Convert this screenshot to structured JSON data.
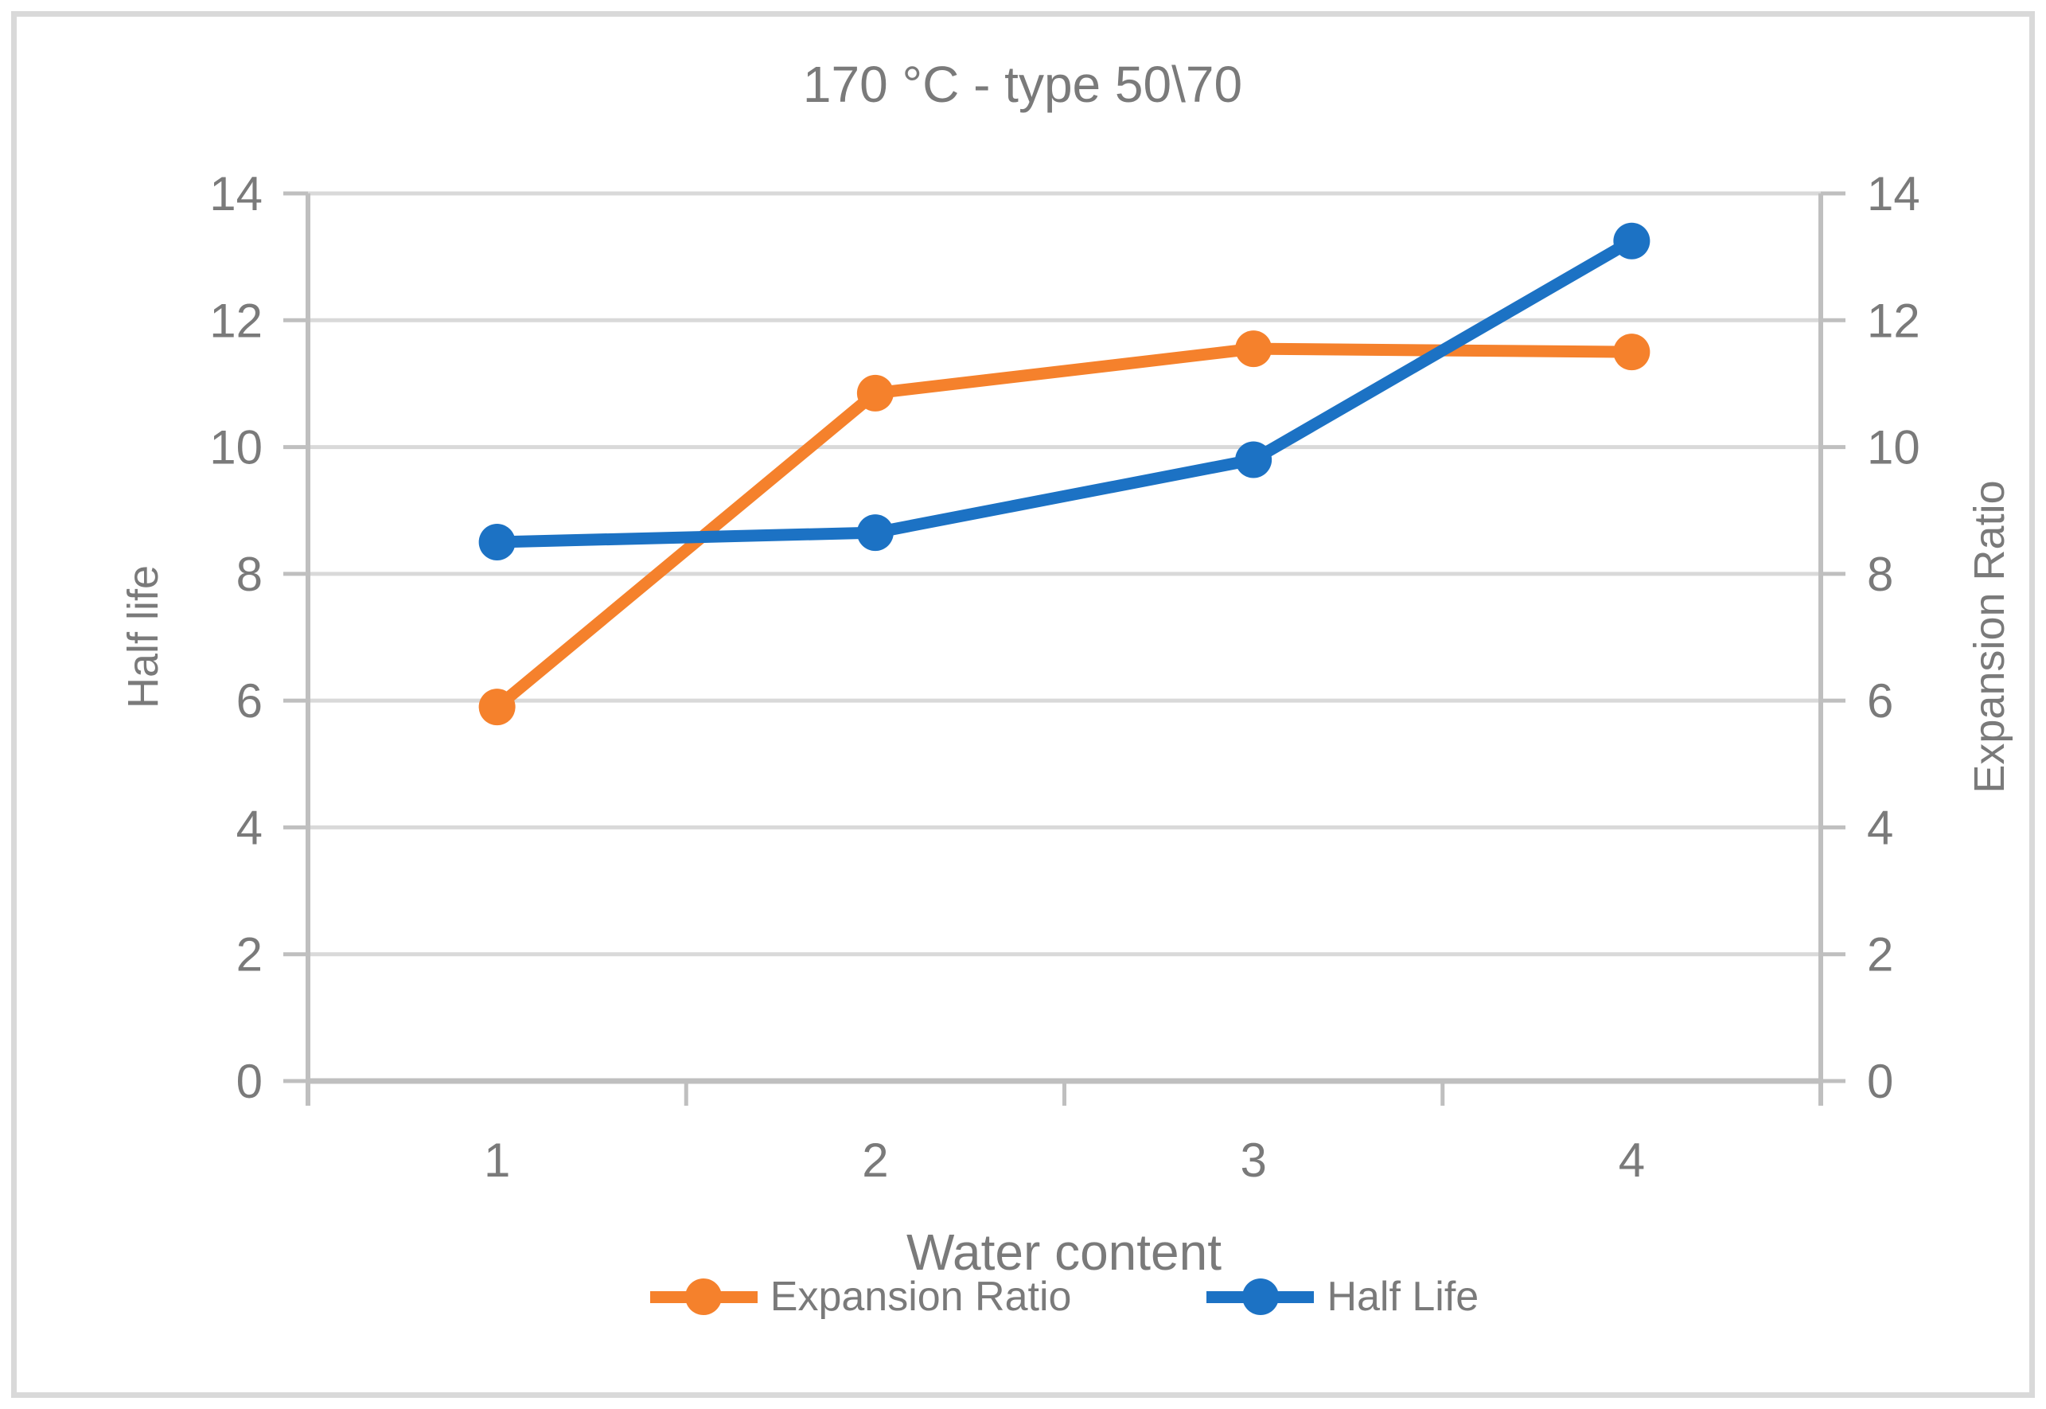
{
  "chart_data": {
    "type": "line",
    "title": "170 °C - type 50\\70",
    "xlabel": "Water content",
    "ylabel_left": "Half life",
    "ylabel_right": "Expansion Ratio",
    "x": [
      1,
      2,
      3,
      4
    ],
    "x_tick_labels": [
      "1",
      "2",
      "3",
      "4"
    ],
    "ylim": [
      0,
      14
    ],
    "yticks": [
      0,
      2,
      4,
      6,
      8,
      10,
      12,
      14
    ],
    "grid": true,
    "legend_position": "bottom",
    "series": [
      {
        "name": "Expansion Ratio",
        "axis": "right",
        "color": "#F5812C",
        "values": [
          5.9,
          10.85,
          11.55,
          11.5
        ]
      },
      {
        "name": "Half Life",
        "axis": "left",
        "color": "#1C72C4",
        "values": [
          8.5,
          8.65,
          9.8,
          13.25
        ]
      }
    ]
  },
  "colors": {
    "gridline": "#D9D9D9",
    "axis_line": "#BFBFBF",
    "text_gray": "#7A7A7A",
    "border": "#D9D9D9",
    "background": "#FFFFFF"
  }
}
